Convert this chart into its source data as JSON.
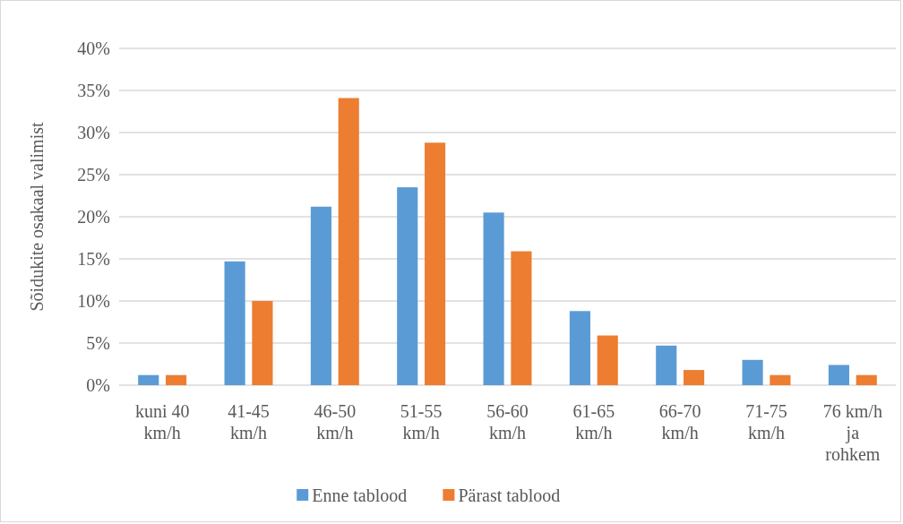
{
  "chart_data": {
    "type": "bar",
    "ylabel": "Sõidukite osakaal valimist",
    "categories": [
      "kuni 40 km/h",
      "41-45 km/h",
      "46-50 km/h",
      "51-55 km/h",
      "56-60 km/h",
      "61-65 km/h",
      "66-70 km/h",
      "71-75 km/h",
      "76 km/h ja rohkem"
    ],
    "series": [
      {
        "name": "Enne tablood",
        "color": "#5b9bd5",
        "values": [
          1.2,
          14.7,
          21.2,
          23.5,
          20.5,
          8.8,
          4.7,
          3.0,
          2.4
        ]
      },
      {
        "name": "Pärast tablood",
        "color": "#ed7d31",
        "values": [
          1.2,
          10.0,
          34.1,
          28.8,
          15.9,
          5.9,
          1.8,
          1.2,
          1.2
        ]
      }
    ],
    "ylim": [
      0,
      40
    ],
    "yticks": [
      {
        "value": 0,
        "label": "0%"
      },
      {
        "value": 5,
        "label": "5%"
      },
      {
        "value": 10,
        "label": "10%"
      },
      {
        "value": 15,
        "label": "15%"
      },
      {
        "value": 20,
        "label": "20%"
      },
      {
        "value": 25,
        "label": "25%"
      },
      {
        "value": 30,
        "label": "30%"
      },
      {
        "value": 35,
        "label": "35%"
      },
      {
        "value": 40,
        "label": "40%"
      }
    ],
    "grid": "y",
    "legend": "bottom"
  }
}
